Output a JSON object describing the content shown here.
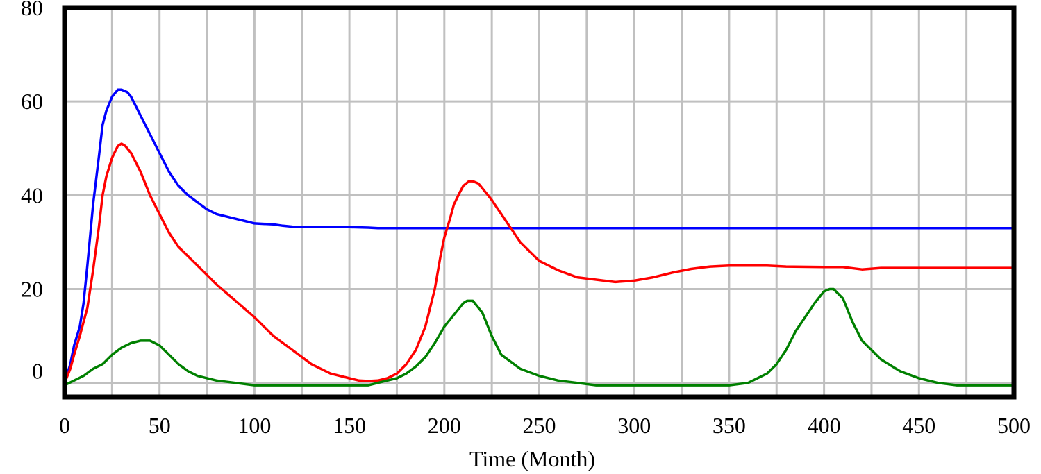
{
  "chart_data": {
    "type": "line",
    "title": "",
    "xlabel": "Time (Month)",
    "ylabel": "",
    "xlim": [
      0,
      500
    ],
    "ylim": [
      -3,
      80
    ],
    "x_ticks": [
      0,
      50,
      100,
      150,
      200,
      250,
      300,
      350,
      400,
      450,
      500
    ],
    "y_ticks": [
      0,
      20,
      40,
      60,
      80
    ],
    "grid": true,
    "legend": "none",
    "series": [
      {
        "color": "#0000ff",
        "x": [
          0,
          3,
          5,
          8,
          10,
          12,
          15,
          18,
          20,
          22,
          25,
          28,
          30,
          33,
          35,
          40,
          45,
          50,
          55,
          60,
          65,
          70,
          75,
          80,
          85,
          90,
          95,
          100,
          110,
          115,
          120,
          130,
          140,
          150,
          160,
          165,
          170,
          200,
          250,
          300,
          350,
          400,
          450,
          500
        ],
        "y": [
          0,
          4,
          8,
          12,
          17,
          25,
          38,
          48,
          55,
          58,
          61,
          62.5,
          62.5,
          62,
          61,
          57,
          53,
          49,
          45,
          42,
          40,
          38.5,
          37,
          36,
          35.5,
          35,
          34.5,
          34,
          33.8,
          33.5,
          33.3,
          33.2,
          33.2,
          33.2,
          33.1,
          33,
          33,
          33,
          33,
          33,
          33,
          33,
          33,
          33
        ]
      },
      {
        "color": "#ff0000",
        "x": [
          0,
          3,
          5,
          8,
          10,
          12,
          15,
          18,
          20,
          22,
          25,
          28,
          30,
          32,
          35,
          40,
          45,
          50,
          55,
          60,
          70,
          80,
          90,
          100,
          110,
          120,
          130,
          140,
          150,
          155,
          160,
          165,
          170,
          175,
          180,
          185,
          190,
          195,
          198,
          200,
          203,
          205,
          208,
          210,
          213,
          215,
          218,
          220,
          225,
          230,
          235,
          240,
          250,
          260,
          270,
          280,
          290,
          300,
          310,
          320,
          330,
          340,
          350,
          360,
          370,
          380,
          400,
          410,
          420,
          430,
          440,
          460,
          480,
          500
        ],
        "y": [
          0,
          3,
          6,
          10,
          13,
          16,
          24,
          33,
          40,
          44,
          48,
          50.5,
          51,
          50.5,
          49,
          45,
          40,
          36,
          32,
          29,
          25,
          21,
          17.5,
          14,
          10,
          7,
          4,
          2,
          1,
          0.5,
          0.4,
          0.5,
          1,
          2,
          4,
          7,
          12,
          20,
          27,
          31,
          35,
          38,
          40.5,
          42,
          43,
          43,
          42.5,
          41.5,
          39,
          36,
          33,
          30,
          26,
          24,
          22.5,
          22,
          21.5,
          21.8,
          22.5,
          23.5,
          24.3,
          24.8,
          25,
          25,
          25,
          24.8,
          24.7,
          24.7,
          24.2,
          24.5,
          24.5,
          24.5,
          24.5,
          24.5
        ]
      },
      {
        "color": "#008000",
        "x": [
          0,
          5,
          10,
          15,
          20,
          25,
          30,
          35,
          40,
          45,
          50,
          55,
          60,
          65,
          70,
          80,
          90,
          100,
          120,
          140,
          160,
          170,
          175,
          180,
          185,
          190,
          195,
          200,
          205,
          210,
          212,
          215,
          220,
          225,
          230,
          240,
          250,
          260,
          270,
          280,
          300,
          340,
          350,
          360,
          370,
          375,
          380,
          385,
          390,
          395,
          400,
          403,
          405,
          410,
          415,
          420,
          430,
          440,
          450,
          460,
          470,
          500
        ],
        "y": [
          -0.5,
          0.5,
          1.5,
          3,
          4,
          6,
          7.5,
          8.5,
          9,
          9,
          8,
          6,
          4,
          2.5,
          1.5,
          0.5,
          0,
          -0.5,
          -0.5,
          -0.5,
          -0.5,
          0.5,
          1,
          2,
          3.5,
          5.5,
          8.5,
          12,
          14.5,
          17,
          17.5,
          17.5,
          15,
          10,
          6,
          3,
          1.5,
          0.5,
          0,
          -0.5,
          -0.5,
          -0.5,
          -0.5,
          0,
          2,
          4,
          7,
          11,
          14,
          17,
          19.5,
          20,
          20,
          18,
          13,
          9,
          5,
          2.5,
          1,
          0,
          -0.5,
          -0.5
        ]
      }
    ]
  }
}
